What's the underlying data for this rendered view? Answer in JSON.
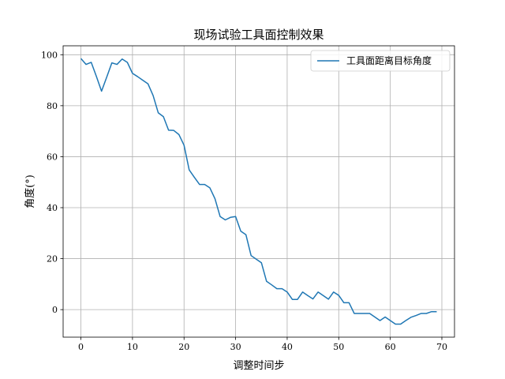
{
  "chart_data": {
    "type": "line",
    "title": "现场试验工具面控制效果",
    "xlabel": "调整时间步",
    "ylabel": "角度(°)",
    "xlim": [
      -3.45,
      72.45
    ],
    "ylim": [
      -10.8,
      103.5
    ],
    "x_ticks": [
      0,
      10,
      20,
      30,
      40,
      50,
      60,
      70
    ],
    "y_ticks": [
      0,
      20,
      40,
      60,
      80,
      100
    ],
    "grid": true,
    "legend_position": "top-right",
    "series": [
      {
        "name": "工具面距离目标角度",
        "color": "#1f77b4",
        "x": [
          0,
          1,
          2,
          3,
          4,
          5,
          6,
          7,
          8,
          9,
          10,
          11,
          12,
          13,
          14,
          15,
          16,
          17,
          18,
          19,
          20,
          21,
          22,
          23,
          24,
          25,
          26,
          27,
          28,
          29,
          30,
          31,
          32,
          33,
          34,
          35,
          36,
          37,
          38,
          39,
          40,
          41,
          42,
          43,
          44,
          45,
          46,
          47,
          48,
          49,
          50,
          51,
          52,
          53,
          54,
          55,
          56,
          57,
          58,
          59,
          60,
          61,
          62,
          63,
          64,
          65,
          66,
          67,
          68,
          69
        ],
        "values": [
          98.5,
          96.2,
          97.0,
          91.5,
          85.7,
          91.2,
          96.8,
          96.2,
          98.3,
          97.0,
          92.7,
          91.4,
          90.0,
          88.6,
          84.0,
          77.2,
          75.7,
          70.4,
          70.3,
          68.7,
          64.5,
          54.8,
          51.9,
          49.1,
          49.1,
          47.8,
          43.5,
          36.5,
          35.2,
          36.2,
          36.5,
          30.8,
          29.4,
          21.2,
          19.8,
          18.4,
          11.1,
          9.7,
          8.2,
          8.2,
          6.9,
          4.0,
          4.0,
          6.9,
          5.5,
          4.2,
          6.9,
          5.5,
          4.1,
          6.9,
          5.6,
          2.7,
          2.7,
          -1.5,
          -1.5,
          -1.5,
          -1.5,
          -2.9,
          -4.3,
          -2.9,
          -4.3,
          -5.7,
          -5.7,
          -4.3,
          -3.0,
          -2.3,
          -1.5,
          -1.5,
          -0.8,
          -0.8
        ]
      }
    ]
  }
}
